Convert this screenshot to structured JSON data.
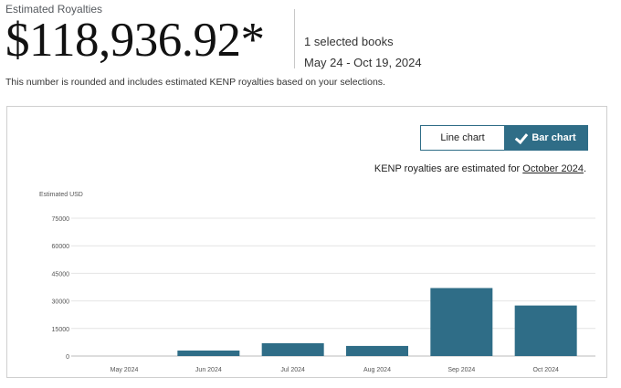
{
  "header": {
    "estimated_label": "Estimated Royalties",
    "total": "$118,936.92*",
    "selected_books": "1 selected books",
    "date_range": "May 24 - Oct 19, 2024",
    "note": "This number is rounded and includes estimated KENP royalties based on your selections."
  },
  "chart_toggle": {
    "line_label": "Line chart",
    "bar_label": "Bar chart",
    "selected": "Bar chart"
  },
  "kenp_note": {
    "prefix": "KENP royalties are estimated for ",
    "month": "October 2024",
    "suffix": "."
  },
  "colors": {
    "bar": "#2f6d87",
    "accent": "#2f6d87"
  },
  "chart_data": {
    "type": "bar",
    "ylabel": "Estimated USD",
    "categories": [
      "May 2024",
      "Jun 2024",
      "Jul 2024",
      "Aug 2024",
      "Sep 2024",
      "Oct 2024"
    ],
    "values": [
      0,
      3000,
      7000,
      5500,
      37000,
      27500
    ],
    "y_ticks": [
      "75000",
      "60000",
      "45000",
      "30000",
      "15000",
      "0"
    ],
    "ylim": [
      0,
      75000
    ],
    "grid": true
  }
}
